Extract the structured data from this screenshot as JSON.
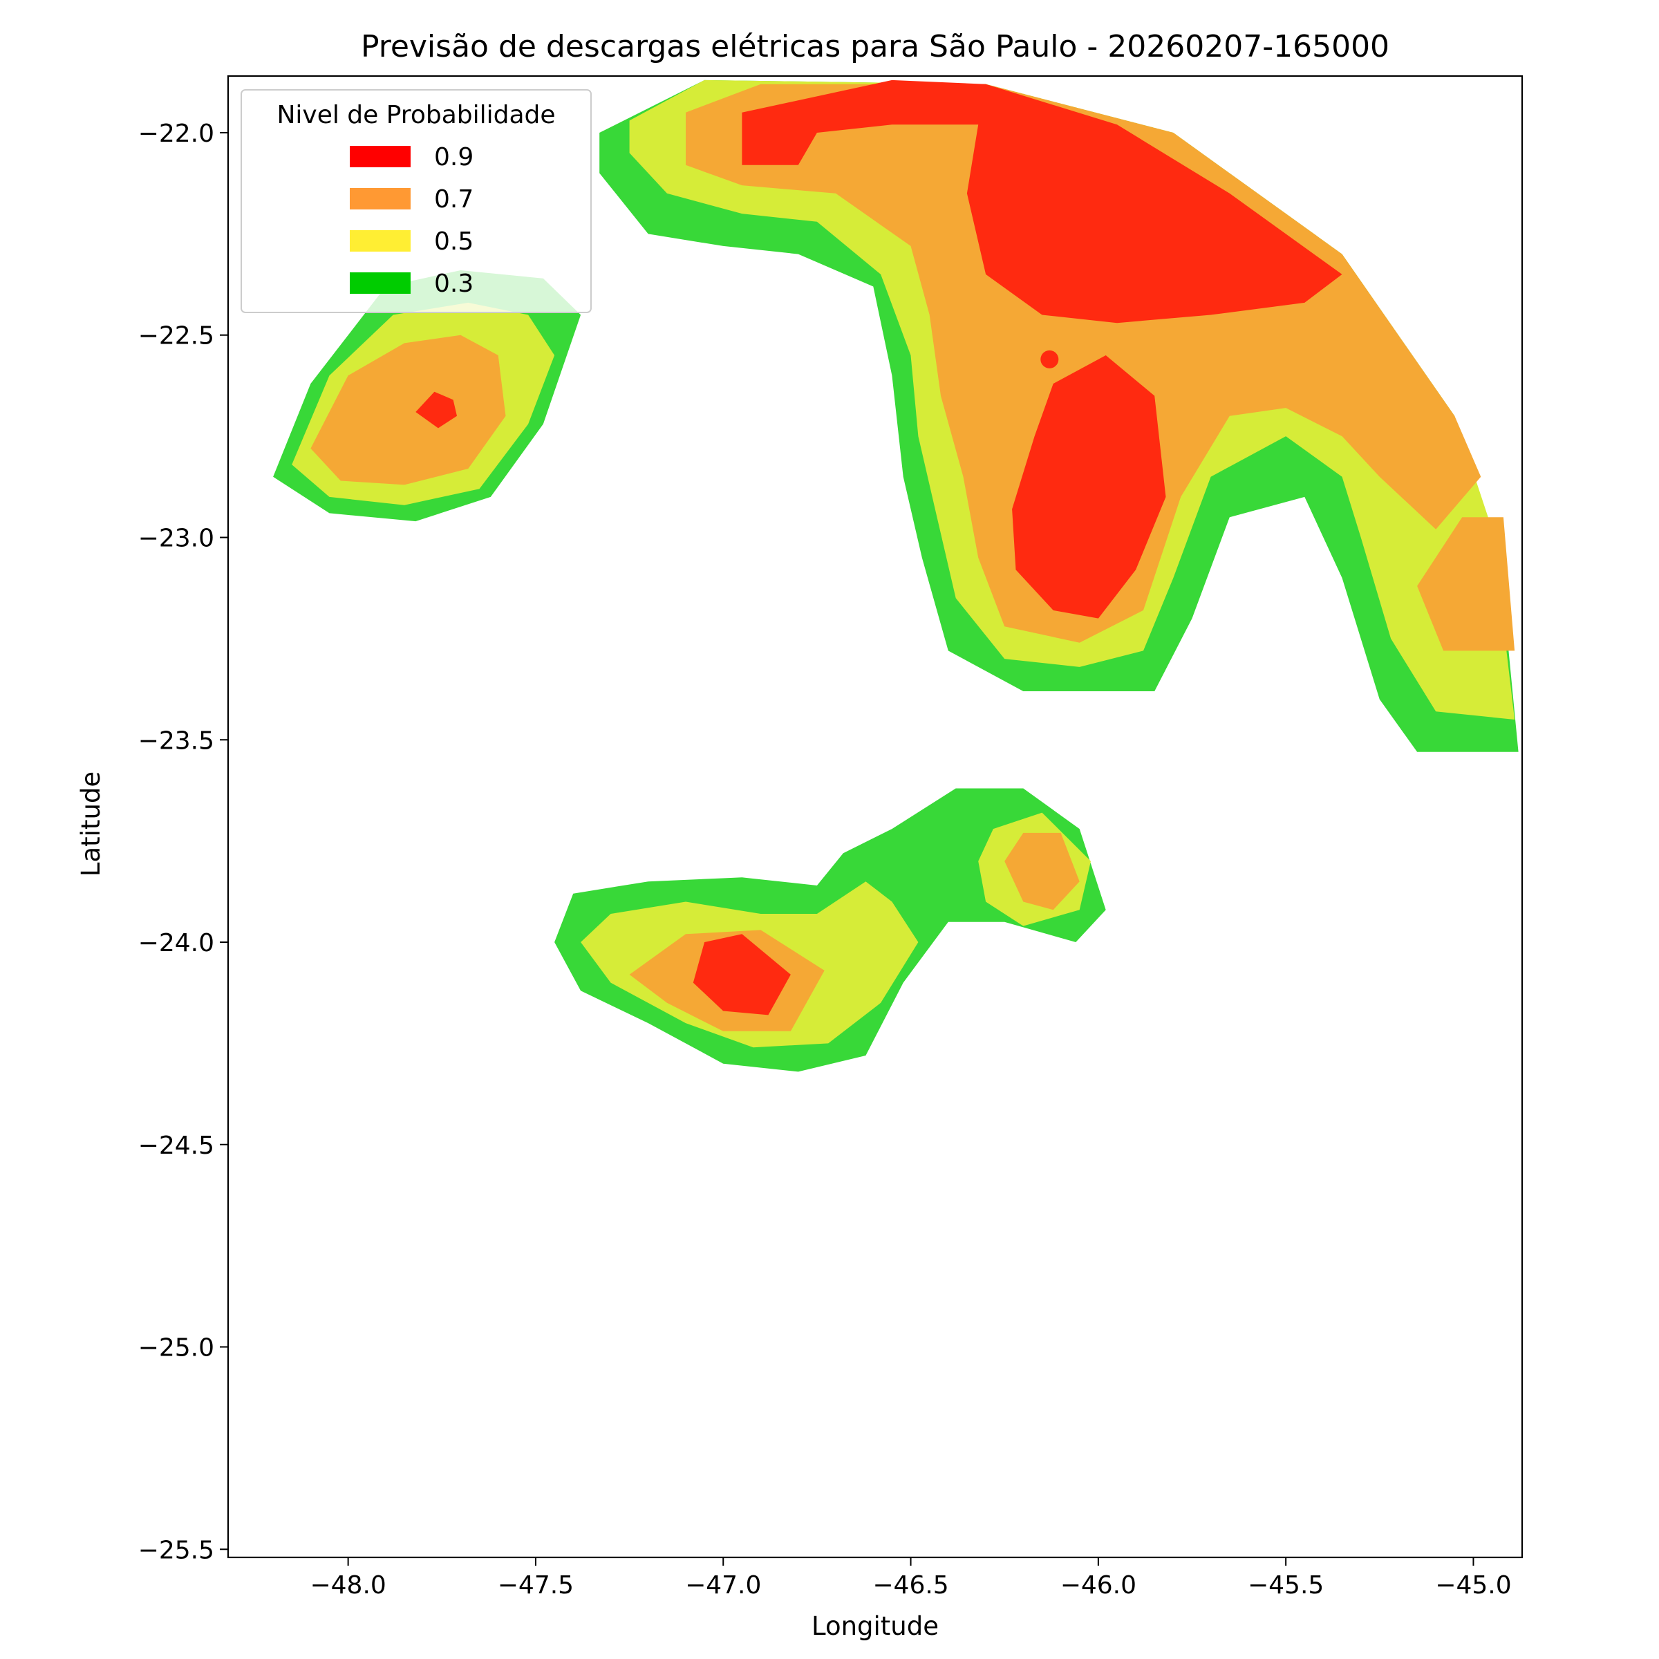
{
  "chart_data": {
    "type": "heatmap",
    "title": "Previsão de descargas elétricas para São Paulo - 20260207-165000",
    "xlabel": "Longitude",
    "ylabel": "Latitude",
    "xlim": [
      -48.32,
      -44.87
    ],
    "ylim": [
      -25.52,
      -21.86
    ],
    "xticks": [
      -48.0,
      -47.5,
      -47.0,
      -46.5,
      -46.0,
      -45.5,
      -45.0
    ],
    "xtick_labels": [
      "−48.0",
      "−47.5",
      "−47.0",
      "−46.5",
      "−46.0",
      "−45.5",
      "−45.0"
    ],
    "yticks": [
      -22.0,
      -22.5,
      -23.0,
      -23.5,
      -24.0,
      -24.5,
      -25.0,
      -25.5
    ],
    "ytick_labels": [
      "−22.0",
      "−22.5",
      "−23.0",
      "−23.5",
      "−24.0",
      "−24.5",
      "−25.0",
      "−25.5"
    ],
    "grid": false,
    "legend": {
      "title": "Nivel de Probabilidade",
      "placement": "upper-left",
      "entries": [
        {
          "label": "0.9",
          "color": "#ff0000"
        },
        {
          "label": "0.7",
          "color": "#ff9933"
        },
        {
          "label": "0.5",
          "color": "#ffee33"
        },
        {
          "label": "0.3",
          "color": "#00cc00"
        }
      ]
    },
    "fill_colors": {
      "0.3": "#38d838",
      "0.5": "#d6ec38",
      "0.7": "#f5a835",
      "0.9": "#ff2a10"
    },
    "marker": {
      "lon": -46.13,
      "lat": -22.56,
      "color": "#ff2a10"
    },
    "regions": [
      {
        "name": "northern-cell",
        "levels": {
          "0.3": [
            [
              -47.33,
              -22.0
            ],
            [
              -47.05,
              -21.87
            ],
            [
              -46.3,
              -21.88
            ],
            [
              -45.8,
              -22.0
            ],
            [
              -45.35,
              -22.3
            ],
            [
              -45.05,
              -22.7
            ],
            [
              -44.93,
              -23.05
            ],
            [
              -44.88,
              -23.53
            ],
            [
              -45.15,
              -23.53
            ],
            [
              -45.25,
              -23.4
            ],
            [
              -45.35,
              -23.1
            ],
            [
              -45.45,
              -22.9
            ],
            [
              -45.65,
              -22.95
            ],
            [
              -45.75,
              -23.2
            ],
            [
              -45.85,
              -23.38
            ],
            [
              -46.0,
              -23.38
            ],
            [
              -46.2,
              -23.38
            ],
            [
              -46.4,
              -23.28
            ],
            [
              -46.47,
              -23.05
            ],
            [
              -46.52,
              -22.85
            ],
            [
              -46.55,
              -22.6
            ],
            [
              -46.6,
              -22.38
            ],
            [
              -46.8,
              -22.3
            ],
            [
              -47.0,
              -22.28
            ],
            [
              -47.2,
              -22.25
            ],
            [
              -47.33,
              -22.1
            ]
          ],
          "0.5": [
            [
              -47.25,
              -21.97
            ],
            [
              -47.05,
              -21.87
            ],
            [
              -46.3,
              -21.88
            ],
            [
              -45.8,
              -22.0
            ],
            [
              -45.35,
              -22.3
            ],
            [
              -45.05,
              -22.7
            ],
            [
              -44.95,
              -22.98
            ],
            [
              -44.89,
              -23.45
            ],
            [
              -45.1,
              -23.43
            ],
            [
              -45.22,
              -23.25
            ],
            [
              -45.3,
              -23.0
            ],
            [
              -45.35,
              -22.85
            ],
            [
              -45.5,
              -22.75
            ],
            [
              -45.7,
              -22.85
            ],
            [
              -45.8,
              -23.1
            ],
            [
              -45.88,
              -23.28
            ],
            [
              -46.05,
              -23.32
            ],
            [
              -46.25,
              -23.3
            ],
            [
              -46.38,
              -23.15
            ],
            [
              -46.43,
              -22.95
            ],
            [
              -46.48,
              -22.75
            ],
            [
              -46.5,
              -22.55
            ],
            [
              -46.58,
              -22.35
            ],
            [
              -46.75,
              -22.22
            ],
            [
              -46.95,
              -22.2
            ],
            [
              -47.15,
              -22.15
            ],
            [
              -47.25,
              -22.05
            ]
          ],
          "0.7": [
            [
              -47.1,
              -21.95
            ],
            [
              -46.9,
              -21.88
            ],
            [
              -46.3,
              -21.88
            ],
            [
              -45.8,
              -22.0
            ],
            [
              -45.35,
              -22.3
            ],
            [
              -45.05,
              -22.7
            ],
            [
              -44.98,
              -22.85
            ],
            [
              -45.1,
              -22.98
            ],
            [
              -45.25,
              -22.85
            ],
            [
              -45.35,
              -22.75
            ],
            [
              -45.5,
              -22.68
            ],
            [
              -45.65,
              -22.7
            ],
            [
              -45.78,
              -22.9
            ],
            [
              -45.88,
              -23.18
            ],
            [
              -46.05,
              -23.26
            ],
            [
              -46.25,
              -23.22
            ],
            [
              -46.32,
              -23.05
            ],
            [
              -46.36,
              -22.85
            ],
            [
              -46.42,
              -22.65
            ],
            [
              -46.45,
              -22.45
            ],
            [
              -46.5,
              -22.28
            ],
            [
              -46.7,
              -22.15
            ],
            [
              -46.95,
              -22.13
            ],
            [
              -47.1,
              -22.08
            ]
          ],
          "0.9": [
            [
              -46.95,
              -21.95
            ],
            [
              -46.55,
              -21.87
            ],
            [
              -46.3,
              -21.88
            ],
            [
              -45.95,
              -21.98
            ],
            [
              -45.65,
              -22.15
            ],
            [
              -45.35,
              -22.35
            ],
            [
              -45.45,
              -22.42
            ],
            [
              -45.7,
              -22.45
            ],
            [
              -45.95,
              -22.47
            ],
            [
              -46.15,
              -22.45
            ],
            [
              -46.3,
              -22.35
            ],
            [
              -46.35,
              -22.15
            ],
            [
              -46.32,
              -21.98
            ],
            [
              -46.55,
              -21.98
            ],
            [
              -46.75,
              -22.0
            ],
            [
              -46.8,
              -22.08
            ],
            [
              -46.95,
              -22.08
            ]
          ]
        }
      },
      {
        "name": "central-core",
        "levels": {
          "0.9": [
            [
              -46.12,
              -22.62
            ],
            [
              -45.98,
              -22.55
            ],
            [
              -45.85,
              -22.65
            ],
            [
              -45.82,
              -22.9
            ],
            [
              -45.9,
              -23.08
            ],
            [
              -46.0,
              -23.2
            ],
            [
              -46.12,
              -23.18
            ],
            [
              -46.22,
              -23.08
            ],
            [
              -46.23,
              -22.93
            ],
            [
              -46.17,
              -22.75
            ]
          ]
        }
      },
      {
        "name": "eastern-edge-core",
        "levels": {
          "0.7": [
            [
              -45.03,
              -22.95
            ],
            [
              -44.92,
              -22.95
            ],
            [
              -44.89,
              -23.28
            ],
            [
              -45.08,
              -23.28
            ],
            [
              -45.15,
              -23.12
            ]
          ]
        }
      },
      {
        "name": "northwest-cell",
        "levels": {
          "0.3": [
            [
              -48.2,
              -22.85
            ],
            [
              -48.1,
              -22.62
            ],
            [
              -47.9,
              -22.38
            ],
            [
              -47.7,
              -22.34
            ],
            [
              -47.48,
              -22.36
            ],
            [
              -47.38,
              -22.45
            ],
            [
              -47.48,
              -22.72
            ],
            [
              -47.62,
              -22.9
            ],
            [
              -47.82,
              -22.96
            ],
            [
              -48.05,
              -22.94
            ]
          ],
          "0.5": [
            [
              -48.15,
              -22.82
            ],
            [
              -48.05,
              -22.6
            ],
            [
              -47.88,
              -22.45
            ],
            [
              -47.68,
              -22.42
            ],
            [
              -47.52,
              -22.45
            ],
            [
              -47.45,
              -22.55
            ],
            [
              -47.52,
              -22.72
            ],
            [
              -47.65,
              -22.88
            ],
            [
              -47.85,
              -22.92
            ],
            [
              -48.05,
              -22.9
            ]
          ],
          "0.7": [
            [
              -48.1,
              -22.78
            ],
            [
              -48.0,
              -22.6
            ],
            [
              -47.85,
              -22.52
            ],
            [
              -47.7,
              -22.5
            ],
            [
              -47.6,
              -22.55
            ],
            [
              -47.58,
              -22.7
            ],
            [
              -47.68,
              -22.83
            ],
            [
              -47.85,
              -22.87
            ],
            [
              -48.02,
              -22.86
            ]
          ],
          "0.9": [
            [
              -47.82,
              -22.69
            ],
            [
              -47.77,
              -22.64
            ],
            [
              -47.72,
              -22.66
            ],
            [
              -47.71,
              -22.7
            ],
            [
              -47.76,
              -22.73
            ]
          ]
        }
      },
      {
        "name": "southern-cell",
        "levels": {
          "0.3": [
            [
              -47.45,
              -24.0
            ],
            [
              -47.4,
              -23.88
            ],
            [
              -47.2,
              -23.85
            ],
            [
              -46.95,
              -23.84
            ],
            [
              -46.75,
              -23.86
            ],
            [
              -46.68,
              -23.78
            ],
            [
              -46.55,
              -23.72
            ],
            [
              -46.38,
              -23.62
            ],
            [
              -46.2,
              -23.62
            ],
            [
              -46.05,
              -23.72
            ],
            [
              -45.98,
              -23.92
            ],
            [
              -46.06,
              -24.0
            ],
            [
              -46.25,
              -23.95
            ],
            [
              -46.4,
              -23.95
            ],
            [
              -46.52,
              -24.1
            ],
            [
              -46.62,
              -24.28
            ],
            [
              -46.8,
              -24.32
            ],
            [
              -47.0,
              -24.3
            ],
            [
              -47.2,
              -24.2
            ],
            [
              -47.38,
              -24.12
            ]
          ],
          "0.5": [
            [
              -47.38,
              -24.0
            ],
            [
              -47.3,
              -23.93
            ],
            [
              -47.1,
              -23.9
            ],
            [
              -46.9,
              -23.93
            ],
            [
              -46.75,
              -23.93
            ],
            [
              -46.62,
              -23.85
            ],
            [
              -46.55,
              -23.9
            ],
            [
              -46.48,
              -24.0
            ],
            [
              -46.58,
              -24.15
            ],
            [
              -46.72,
              -24.25
            ],
            [
              -46.92,
              -24.26
            ],
            [
              -47.1,
              -24.2
            ],
            [
              -47.3,
              -24.1
            ]
          ],
          "0.7": [
            [
              -47.25,
              -24.08
            ],
            [
              -47.1,
              -23.98
            ],
            [
              -46.9,
              -23.97
            ],
            [
              -46.73,
              -24.07
            ],
            [
              -46.82,
              -24.22
            ],
            [
              -47.0,
              -24.22
            ],
            [
              -47.15,
              -24.15
            ]
          ],
          "0.9": [
            [
              -47.08,
              -24.1
            ],
            [
              -47.05,
              -24.0
            ],
            [
              -46.95,
              -23.98
            ],
            [
              -46.82,
              -24.08
            ],
            [
              -46.88,
              -24.18
            ],
            [
              -47.0,
              -24.17
            ]
          ],
          "0.5b": [
            [
              -46.28,
              -23.72
            ],
            [
              -46.15,
              -23.68
            ],
            [
              -46.02,
              -23.8
            ],
            [
              -46.05,
              -23.92
            ],
            [
              -46.2,
              -23.96
            ],
            [
              -46.3,
              -23.9
            ],
            [
              -46.32,
              -23.8
            ]
          ],
          "0.7b": [
            [
              -46.2,
              -23.73
            ],
            [
              -46.1,
              -23.73
            ],
            [
              -46.05,
              -23.85
            ],
            [
              -46.12,
              -23.92
            ],
            [
              -46.2,
              -23.9
            ],
            [
              -46.25,
              -23.8
            ]
          ]
        }
      }
    ]
  }
}
